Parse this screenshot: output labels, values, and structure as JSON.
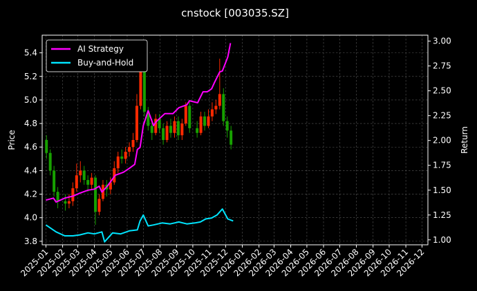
{
  "chart_data": {
    "type": "line",
    "title": "cnstock [003035.SZ]",
    "ylabel_left": "Price",
    "ylabel_right": "Return",
    "xlabel": "",
    "grid": true,
    "legend_position": "top-left",
    "x_ticks": [
      "2025-01",
      "2025-02",
      "2025-03",
      "2025-04",
      "2025-05",
      "2025-06",
      "2025-07",
      "2025-08",
      "2025-09",
      "2025-10",
      "2025-11",
      "2025-12",
      "2026-01",
      "2026-02",
      "2026-03",
      "2026-04",
      "2026-05",
      "2026-06",
      "2026-07",
      "2026-08",
      "2026-09",
      "2026-10",
      "2026-11",
      "2026-12"
    ],
    "y_left_ticks": [
      "3.8",
      "4.0",
      "4.2",
      "4.4",
      "4.6",
      "4.8",
      "5.0",
      "5.2",
      "5.4"
    ],
    "y_right_ticks": [
      "1.00",
      "1.25",
      "1.50",
      "1.75",
      "2.00",
      "2.25",
      "2.50",
      "2.75",
      "3.00"
    ],
    "ylim_left": [
      3.77,
      5.55
    ],
    "ylim_right": [
      0.95,
      3.06
    ],
    "xlim": [
      "2024-12-25",
      "2026-12-12"
    ],
    "candles": {
      "dates": [
        "2025-01-02",
        "2025-01-09",
        "2025-01-16",
        "2025-01-23",
        "2025-02-06",
        "2025-02-13",
        "2025-02-20",
        "2025-02-27",
        "2025-03-06",
        "2025-03-13",
        "2025-03-20",
        "2025-03-27",
        "2025-04-03",
        "2025-04-10",
        "2025-04-17",
        "2025-04-24",
        "2025-05-01",
        "2025-05-08",
        "2025-05-15",
        "2025-05-22",
        "2025-05-29",
        "2025-06-05",
        "2025-06-12",
        "2025-06-19",
        "2025-06-26",
        "2025-07-03",
        "2025-07-10",
        "2025-07-17",
        "2025-07-24",
        "2025-07-31",
        "2025-08-07",
        "2025-08-14",
        "2025-08-21",
        "2025-08-28",
        "2025-09-04",
        "2025-09-11",
        "2025-09-18",
        "2025-09-25",
        "2025-10-09",
        "2025-10-16",
        "2025-10-23",
        "2025-10-30",
        "2025-11-06",
        "2025-11-13",
        "2025-11-20",
        "2025-11-27",
        "2025-12-04",
        "2025-12-11"
      ],
      "open": [
        4.66,
        4.55,
        4.4,
        4.22,
        4.14,
        4.12,
        4.14,
        4.25,
        4.36,
        4.4,
        4.32,
        4.28,
        4.34,
        4.05,
        4.16,
        4.28,
        4.24,
        4.3,
        4.42,
        4.52,
        4.5,
        4.56,
        4.6,
        4.66,
        4.95,
        5.25,
        4.9,
        4.78,
        4.72,
        4.84,
        4.76,
        4.66,
        4.78,
        4.72,
        4.82,
        4.7,
        4.8,
        4.95,
        4.76,
        4.72,
        4.86,
        4.78,
        4.86,
        4.92,
        4.95,
        5.05,
        4.82,
        4.74
      ],
      "close": [
        4.55,
        4.4,
        4.22,
        4.14,
        4.12,
        4.14,
        4.25,
        4.36,
        4.4,
        4.32,
        4.28,
        4.34,
        4.05,
        4.16,
        4.28,
        4.24,
        4.3,
        4.42,
        4.52,
        4.5,
        4.56,
        4.6,
        4.66,
        4.95,
        5.25,
        4.9,
        4.78,
        4.72,
        4.84,
        4.76,
        4.66,
        4.78,
        4.72,
        4.82,
        4.7,
        4.8,
        4.95,
        4.76,
        4.72,
        4.86,
        4.78,
        4.86,
        4.92,
        4.95,
        5.05,
        4.82,
        4.74,
        4.62
      ],
      "high": [
        4.7,
        4.58,
        4.44,
        4.26,
        4.2,
        4.2,
        4.3,
        4.46,
        4.48,
        4.44,
        4.36,
        4.38,
        4.36,
        4.2,
        4.32,
        4.32,
        4.34,
        4.48,
        4.56,
        4.58,
        4.6,
        4.64,
        4.72,
        5.05,
        5.38,
        5.26,
        4.94,
        4.84,
        4.88,
        4.88,
        4.8,
        4.82,
        4.84,
        4.86,
        4.86,
        4.84,
        4.98,
        4.98,
        4.82,
        4.9,
        4.9,
        4.92,
        4.98,
        5.0,
        5.35,
        5.1,
        4.86,
        4.78
      ],
      "low": [
        4.5,
        4.36,
        4.18,
        4.08,
        4.06,
        4.08,
        4.1,
        4.22,
        4.3,
        4.28,
        4.22,
        4.24,
        3.94,
        4.02,
        4.14,
        4.18,
        4.2,
        4.28,
        4.38,
        4.46,
        4.46,
        4.52,
        4.56,
        4.64,
        4.92,
        4.86,
        4.74,
        4.66,
        4.7,
        4.72,
        4.62,
        4.64,
        4.68,
        4.68,
        4.66,
        4.66,
        4.78,
        4.72,
        4.68,
        4.7,
        4.74,
        4.76,
        4.82,
        4.88,
        4.92,
        4.78,
        4.68,
        4.58
      ],
      "up_color": "#ff2a00",
      "down_color": "#17a000"
    },
    "series": [
      {
        "name": "AI Strategy",
        "color": "#ff00ff",
        "axis": "right",
        "x": [
          "2025-01-01",
          "2025-01-15",
          "2025-01-20",
          "2025-02-05",
          "2025-02-20",
          "2025-03-05",
          "2025-03-20",
          "2025-04-01",
          "2025-04-10",
          "2025-04-15",
          "2025-04-25",
          "2025-05-10",
          "2025-05-25",
          "2025-06-05",
          "2025-06-15",
          "2025-06-20",
          "2025-06-25",
          "2025-07-01",
          "2025-07-10",
          "2025-07-20",
          "2025-07-25",
          "2025-08-10",
          "2025-08-25",
          "2025-09-05",
          "2025-09-20",
          "2025-09-25",
          "2025-10-10",
          "2025-10-20",
          "2025-10-28",
          "2025-11-05",
          "2025-11-10",
          "2025-11-20",
          "2025-11-25",
          "2025-12-05",
          "2025-12-10"
        ],
        "values": [
          1.4,
          1.42,
          1.38,
          1.42,
          1.44,
          1.47,
          1.5,
          1.51,
          1.54,
          1.48,
          1.54,
          1.65,
          1.68,
          1.72,
          1.76,
          1.91,
          1.93,
          2.15,
          2.3,
          2.15,
          2.19,
          2.27,
          2.27,
          2.33,
          2.36,
          2.4,
          2.38,
          2.49,
          2.49,
          2.52,
          2.58,
          2.69,
          2.7,
          2.84,
          2.98
        ]
      },
      {
        "name": "Buy-and-Hold",
        "color": "#00e5ff",
        "axis": "right",
        "x": [
          "2025-01-01",
          "2025-01-20",
          "2025-02-05",
          "2025-02-20",
          "2025-03-05",
          "2025-03-20",
          "2025-04-01",
          "2025-04-15",
          "2025-04-20",
          "2025-05-05",
          "2025-05-20",
          "2025-06-05",
          "2025-06-20",
          "2025-06-25",
          "2025-07-01",
          "2025-07-10",
          "2025-07-20",
          "2025-08-05",
          "2025-08-20",
          "2025-09-05",
          "2025-09-20",
          "2025-10-05",
          "2025-10-15",
          "2025-10-25",
          "2025-11-05",
          "2025-11-15",
          "2025-11-25",
          "2025-12-05",
          "2025-12-15"
        ],
        "values": [
          1.15,
          1.08,
          1.04,
          1.04,
          1.05,
          1.07,
          1.06,
          1.08,
          0.98,
          1.07,
          1.06,
          1.09,
          1.1,
          1.19,
          1.25,
          1.14,
          1.15,
          1.17,
          1.16,
          1.18,
          1.16,
          1.17,
          1.18,
          1.21,
          1.22,
          1.25,
          1.31,
          1.21,
          1.19
        ]
      }
    ]
  }
}
